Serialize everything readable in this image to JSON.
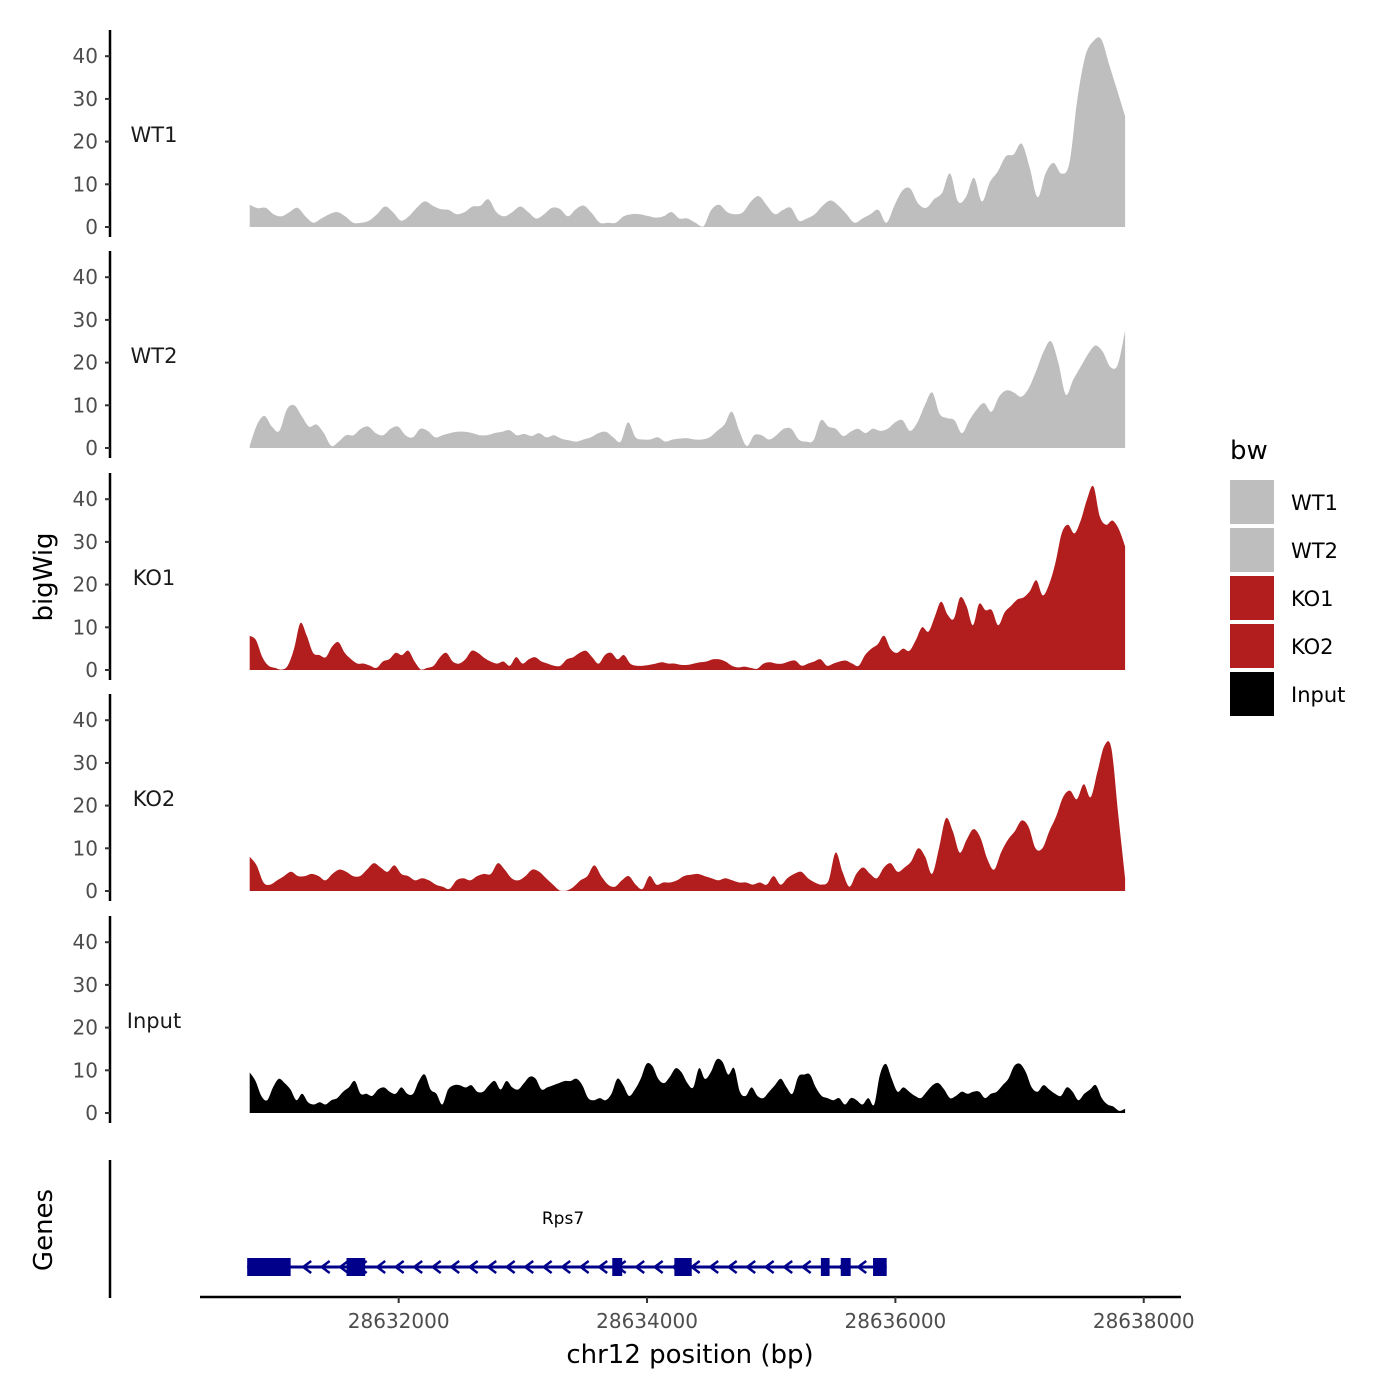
{
  "chart_data": {
    "type": "area",
    "title": "",
    "ylabel": "bigWig",
    "xlabel": "chr12 position (bp)",
    "xlim": [
      28630400,
      28638300
    ],
    "ylim": [
      0,
      45
    ],
    "ytick_values": [
      0,
      10,
      20,
      30,
      40
    ],
    "ytick_labels": [
      "0",
      "10",
      "20",
      "30",
      "40"
    ],
    "xtick_values": [
      28632000,
      28634000,
      28636000,
      28638000
    ],
    "xtick_labels": [
      "28632000",
      "28634000",
      "28636000",
      "28638000"
    ],
    "x_start": 28630800,
    "x_end": 28637850,
    "tracks": [
      {
        "name": "WT1",
        "color": "#bebebe",
        "values": [
          5.2,
          4.4,
          4.5,
          3.0,
          2.5,
          3.5,
          4.5,
          2.5,
          1.0,
          2.0,
          3.0,
          3.5,
          2.5,
          1.0,
          1.0,
          1.5,
          3.0,
          4.8,
          3.5,
          1.5,
          2.5,
          4.5,
          6.0,
          5.0,
          4.2,
          4.0,
          3.0,
          3.5,
          4.8,
          5.0,
          6.5,
          3.5,
          2.5,
          3.5,
          4.8,
          3.5,
          2.0,
          3.0,
          4.5,
          4.2,
          2.5,
          4.2,
          5.0,
          3.2,
          1.0,
          1.0,
          1.0,
          2.5,
          3.0,
          3.0,
          2.6,
          2.2,
          2.5,
          3.5,
          2.0,
          2.0,
          1.0,
          0.1,
          4.0,
          5.2,
          3.5,
          3.0,
          3.5,
          6.0,
          7.2,
          5.0,
          3.0,
          4.0,
          4.5,
          1.5,
          2.0,
          3.0,
          5.0,
          6.2,
          5.0,
          3.0,
          1.0,
          2.0,
          3.0,
          4.0,
          1.0,
          5.0,
          8.5,
          9.0,
          5.5,
          4.5,
          6.5,
          8.0,
          12.5,
          6.0,
          7.0,
          11.5,
          6.0,
          10.5,
          13.0,
          16.5,
          17.0,
          19.5,
          14.0,
          7.0,
          12.5,
          15.0,
          12.5,
          15.0,
          30.0,
          40.0,
          43.5,
          44.0,
          38.0,
          32.0,
          26.0
        ]
      },
      {
        "name": "WT2",
        "color": "#bebebe",
        "values": [
          0.5,
          5.5,
          7.5,
          5.0,
          4.0,
          9.0,
          10.0,
          7.5,
          5.0,
          5.5,
          3.5,
          0.5,
          1.5,
          3.0,
          3.0,
          4.5,
          5.0,
          3.5,
          3.0,
          4.5,
          5.0,
          3.0,
          2.5,
          4.5,
          4.0,
          2.5,
          3.0,
          3.5,
          3.8,
          3.8,
          3.5,
          3.0,
          3.0,
          3.5,
          3.8,
          4.2,
          3.0,
          3.3,
          2.8,
          3.5,
          2.5,
          3.0,
          2.2,
          1.8,
          1.5,
          2.0,
          2.5,
          3.5,
          3.8,
          2.5,
          1.5,
          6.0,
          2.5,
          2.0,
          2.0,
          2.5,
          1.5,
          2.0,
          2.2,
          2.3,
          2.0,
          2.0,
          2.5,
          4.0,
          5.5,
          8.5,
          4.0,
          0.5,
          3.0,
          3.0,
          2.0,
          3.0,
          4.5,
          4.5,
          2.0,
          1.5,
          1.8,
          6.5,
          5.0,
          4.5,
          2.8,
          3.8,
          4.5,
          3.5,
          4.5,
          4.0,
          4.5,
          6.0,
          6.5,
          4.0,
          6.0,
          10.0,
          13.0,
          8.0,
          7.0,
          6.5,
          3.5,
          6.5,
          9.0,
          10.5,
          8.5,
          12.0,
          13.5,
          13.0,
          12.0,
          14.0,
          18.0,
          22.5,
          25.0,
          20.0,
          12.5,
          16.0,
          19.0,
          22.0,
          24.0,
          22.5,
          19.0,
          19.5,
          27.5
        ]
      },
      {
        "name": "KO1",
        "color": "#b21e1e",
        "values": [
          8.0,
          7.0,
          3.0,
          1.0,
          0.5,
          0.1,
          1.0,
          5.0,
          11.0,
          8.0,
          4.0,
          3.5,
          3.0,
          5.5,
          6.5,
          4.0,
          2.5,
          1.5,
          1.5,
          1.0,
          0.5,
          2.0,
          2.5,
          4.0,
          3.5,
          4.5,
          2.0,
          0.1,
          0.5,
          1.0,
          3.0,
          4.0,
          2.0,
          1.5,
          2.5,
          4.5,
          4.0,
          2.8,
          2.0,
          1.5,
          2.0,
          1.0,
          3.0,
          1.5,
          2.5,
          3.0,
          2.0,
          1.5,
          1.0,
          1.0,
          2.5,
          3.0,
          4.0,
          4.5,
          3.0,
          1.5,
          3.5,
          4.0,
          2.5,
          3.5,
          1.5,
          1.0,
          1.0,
          1.2,
          1.5,
          1.8,
          1.5,
          1.5,
          1.2,
          1.2,
          1.5,
          1.8,
          2.0,
          2.5,
          2.5,
          2.0,
          1.0,
          0.6,
          0.8,
          0.5,
          0.3,
          1.5,
          1.8,
          1.5,
          1.5,
          2.0,
          2.2,
          1.0,
          1.5,
          2.0,
          2.5,
          1.0,
          1.5,
          2.0,
          2.2,
          1.5,
          1.0,
          3.5,
          5.0,
          6.0,
          8.0,
          5.0,
          4.0,
          5.0,
          4.5,
          7.0,
          10.0,
          9.0,
          12.5,
          16.0,
          13.0,
          12.0,
          17.0,
          15.0,
          10.5,
          15.5,
          14.0,
          14.0,
          10.5,
          13.5,
          15.0,
          16.5,
          17.0,
          18.5,
          21.0,
          17.5,
          20.0,
          25.0,
          32.0,
          34.0,
          32.0,
          35.0,
          40.0,
          43.0,
          36.0,
          34.0,
          35.0,
          33.0,
          29.0
        ]
      },
      {
        "name": "KO2",
        "color": "#b21e1e",
        "values": [
          8.0,
          6.0,
          2.0,
          1.5,
          2.5,
          3.5,
          4.5,
          3.5,
          3.5,
          4.0,
          3.5,
          2.5,
          4.0,
          5.0,
          4.5,
          3.5,
          3.5,
          5.0,
          6.5,
          5.5,
          4.5,
          6.0,
          4.0,
          3.5,
          2.5,
          3.0,
          2.5,
          1.5,
          1.0,
          0.5,
          2.5,
          3.0,
          2.5,
          3.5,
          4.0,
          4.0,
          6.5,
          5.0,
          3.0,
          2.5,
          3.5,
          5.0,
          4.5,
          3.0,
          1.5,
          0.1,
          0.1,
          1.0,
          2.5,
          3.5,
          6.0,
          3.5,
          1.5,
          1.0,
          2.5,
          3.5,
          1.5,
          0.5,
          3.5,
          1.5,
          2.0,
          2.0,
          2.5,
          3.5,
          3.8,
          4.0,
          3.5,
          3.0,
          2.5,
          3.0,
          2.5,
          2.0,
          2.0,
          1.5,
          2.0,
          1.5,
          3.5,
          1.5,
          3.0,
          4.0,
          4.5,
          3.0,
          2.0,
          1.5,
          2.5,
          9.0,
          4.5,
          1.0,
          4.0,
          5.5,
          4.0,
          3.0,
          5.5,
          6.5,
          4.5,
          5.5,
          7.0,
          10.0,
          8.0,
          4.0,
          10.0,
          17.0,
          14.0,
          9.0,
          12.0,
          14.5,
          12.5,
          7.5,
          5.0,
          9.0,
          12.0,
          14.0,
          16.5,
          15.0,
          10.0,
          10.0,
          14.0,
          17.5,
          22.0,
          23.5,
          21.5,
          25.0,
          22.0,
          28.0,
          34.0,
          33.5,
          18.0,
          3.0
        ]
      },
      {
        "name": "Input",
        "color": "#000000",
        "values": [
          9.5,
          7.5,
          4.0,
          3.0,
          6.0,
          8.0,
          7.0,
          5.5,
          3.0,
          4.5,
          2.5,
          2.0,
          2.5,
          2.0,
          3.0,
          3.5,
          5.0,
          6.0,
          7.5,
          4.5,
          4.5,
          4.0,
          5.5,
          6.0,
          5.0,
          4.5,
          6.0,
          4.5,
          4.5,
          7.5,
          9.0,
          5.5,
          4.5,
          2.0,
          5.5,
          6.5,
          6.5,
          6.0,
          6.5,
          5.0,
          5.0,
          6.5,
          7.5,
          5.5,
          7.5,
          6.0,
          5.5,
          7.0,
          8.5,
          8.0,
          5.5,
          6.0,
          6.5,
          7.0,
          7.5,
          7.5,
          8.0,
          6.5,
          3.5,
          3.0,
          3.5,
          3.0,
          4.5,
          8.0,
          6.5,
          4.0,
          5.5,
          8.0,
          11.5,
          11.0,
          8.0,
          7.0,
          8.5,
          10.5,
          9.5,
          7.0,
          6.0,
          10.5,
          8.0,
          9.5,
          12.5,
          12.0,
          9.0,
          10.5,
          5.0,
          4.0,
          6.0,
          4.0,
          3.5,
          5.0,
          6.5,
          8.0,
          6.0,
          4.5,
          8.5,
          9.0,
          9.0,
          6.0,
          4.0,
          3.5,
          3.0,
          3.5,
          2.0,
          3.5,
          3.0,
          2.0,
          3.5,
          2.0,
          9.0,
          11.5,
          8.0,
          5.0,
          6.0,
          5.0,
          4.0,
          3.5,
          5.0,
          6.5,
          7.0,
          5.5,
          3.5,
          4.0,
          5.0,
          4.5,
          5.0,
          5.0,
          3.5,
          4.5,
          5.0,
          6.5,
          8.0,
          11.0,
          11.5,
          9.5,
          6.0,
          5.0,
          6.5,
          5.5,
          4.5,
          4.0,
          6.0,
          5.0,
          3.0,
          4.5,
          5.5,
          6.5,
          3.5,
          2.0,
          1.5,
          0.5,
          1.0
        ]
      }
    ],
    "gene": {
      "name": "Rps7",
      "strand": "-",
      "color": "#00008b",
      "start": 28630780,
      "end": 28635930,
      "exons": [
        [
          28630780,
          28631130
        ],
        [
          28631580,
          28631730
        ],
        [
          28633720,
          28633800
        ],
        [
          28634220,
          28634360
        ],
        [
          28635400,
          28635470
        ],
        [
          28635560,
          28635640
        ],
        [
          28635820,
          28635930
        ]
      ]
    },
    "panel_label": "Genes",
    "legend": {
      "title": "bw",
      "position": "right",
      "entries": [
        {
          "label": "WT1",
          "color": "#bebebe"
        },
        {
          "label": "WT2",
          "color": "#bebebe"
        },
        {
          "label": "KO1",
          "color": "#b21e1e"
        },
        {
          "label": "KO2",
          "color": "#b21e1e"
        },
        {
          "label": "Input",
          "color": "#000000"
        }
      ]
    }
  }
}
